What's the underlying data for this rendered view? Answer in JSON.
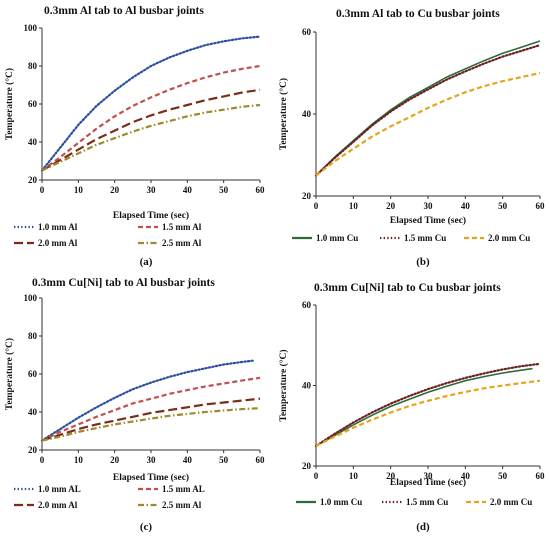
{
  "chart_data": [
    {
      "type": "line",
      "panel_label": "(a)",
      "title": "0.3mm Al tab to Al busbar joints",
      "xlabel": "Elapsed Time (sec)",
      "ylabel": "Temperature (°C)",
      "xlim": [
        0,
        60
      ],
      "ylim": [
        20,
        100
      ],
      "xticks": [
        "0",
        "10",
        "20",
        "30",
        "40",
        "50",
        "60"
      ],
      "yticks": [
        "20",
        "40",
        "60",
        "80",
        "100"
      ],
      "grid": false,
      "legend_position": "bottom",
      "series": [
        {
          "name": "1.0 mm Al",
          "color": "#2b4fa0",
          "dash": "dotted",
          "x": [
            0,
            5,
            10,
            15,
            20,
            25,
            30,
            35,
            40,
            45,
            50,
            55,
            60
          ],
          "y": [
            25,
            37,
            49,
            59,
            67,
            74,
            80,
            84.5,
            88,
            91,
            93,
            94.5,
            95.5
          ]
        },
        {
          "name": "1.5 mm Al",
          "color": "#c0504d",
          "dash": "dashed",
          "x": [
            0,
            5,
            10,
            15,
            20,
            25,
            30,
            35,
            40,
            45,
            50,
            55,
            60
          ],
          "y": [
            25,
            32,
            39.5,
            47,
            53.5,
            59,
            63.5,
            67.5,
            71,
            74,
            76.5,
            78.5,
            80
          ]
        },
        {
          "name": "2.0 mm Al",
          "color": "#7b2c16",
          "dash": "longdash",
          "x": [
            0,
            5,
            10,
            15,
            20,
            25,
            30,
            35,
            40,
            45,
            50,
            55,
            60
          ],
          "y": [
            25,
            30.5,
            36,
            41.5,
            46,
            50.5,
            54,
            57,
            59.5,
            62,
            64,
            66,
            67.5
          ]
        },
        {
          "name": "2.5 mm Al",
          "color": "#9c8a2e",
          "dash": "dashdot",
          "x": [
            0,
            5,
            10,
            15,
            20,
            25,
            30,
            35,
            40,
            45,
            50,
            55,
            60
          ],
          "y": [
            25,
            29.5,
            34,
            38.5,
            42,
            45.5,
            48.5,
            51,
            53.5,
            55.5,
            57,
            58.5,
            59.5
          ]
        }
      ]
    },
    {
      "type": "line",
      "panel_label": "(b)",
      "title": "0.3mm Al tab to Cu busbar joints",
      "xlabel": "Elapsed Time (sec)",
      "ylabel": "Temperature (°C)",
      "xlim": [
        0,
        60
      ],
      "ylim": [
        20,
        60
      ],
      "xticks": [
        "0",
        "10",
        "20",
        "30",
        "40",
        "50",
        "60"
      ],
      "yticks": [
        "20",
        "40",
        "60"
      ],
      "grid": false,
      "legend_position": "bottom",
      "series": [
        {
          "name": "1.0 mm Cu",
          "color": "#2e6b3a",
          "dash": "solid",
          "x": [
            0,
            5,
            10,
            15,
            20,
            25,
            30,
            35,
            40,
            45,
            50,
            55,
            60
          ],
          "y": [
            25,
            29.5,
            33.5,
            37.5,
            41,
            44,
            46.5,
            49,
            51,
            53,
            54.8,
            56.3,
            57.8
          ]
        },
        {
          "name": "1.5 mm Cu",
          "color": "#6b2222",
          "dash": "dotted",
          "x": [
            0,
            5,
            10,
            15,
            20,
            25,
            30,
            35,
            40,
            45,
            50,
            55,
            60
          ],
          "y": [
            25,
            29.3,
            33.2,
            37.2,
            40.6,
            43.5,
            46,
            48.4,
            50.4,
            52.3,
            54,
            55.4,
            56.8
          ]
        },
        {
          "name": "2.0 mm Cu",
          "color": "#e3a51c",
          "dash": "dashed",
          "x": [
            0,
            5,
            10,
            15,
            20,
            25,
            30,
            35,
            40,
            45,
            50,
            55,
            60
          ],
          "y": [
            25,
            28.5,
            31.5,
            34.5,
            37,
            39.2,
            41.5,
            43.5,
            45.3,
            46.8,
            48,
            49,
            50
          ]
        }
      ]
    },
    {
      "type": "line",
      "panel_label": "(c)",
      "title": "0.3mm Cu[Ni] tab to Al busbar joints",
      "xlabel": "Elapsed Time (sec)",
      "ylabel": "Temperature (°C)",
      "xlim": [
        0,
        60
      ],
      "ylim": [
        20,
        100
      ],
      "xticks": [
        "0",
        "10",
        "20",
        "30",
        "40",
        "50",
        "60"
      ],
      "yticks": [
        "20",
        "40",
        "60",
        "80",
        "100"
      ],
      "grid": false,
      "legend_position": "bottom",
      "series": [
        {
          "name": "1.0 mm AL",
          "color": "#2b4fa0",
          "dash": "dotted",
          "x": [
            0,
            5,
            10,
            15,
            20,
            25,
            30,
            35,
            40,
            45,
            50,
            55,
            58
          ],
          "y": [
            25,
            31,
            37,
            42.5,
            47.5,
            52,
            55.5,
            58.5,
            61,
            63,
            65,
            66.3,
            67
          ]
        },
        {
          "name": "1.5 mm AL",
          "color": "#c0504d",
          "dash": "dashed",
          "x": [
            0,
            5,
            10,
            15,
            20,
            25,
            30,
            35,
            40,
            45,
            50,
            55,
            60
          ],
          "y": [
            25,
            29.5,
            33.5,
            37.5,
            41,
            44.5,
            47,
            49.5,
            51.5,
            53.5,
            55,
            56.5,
            58
          ]
        },
        {
          "name": "2.0 mm Al",
          "color": "#7b2c16",
          "dash": "longdash",
          "x": [
            0,
            5,
            10,
            15,
            20,
            25,
            30,
            35,
            40,
            45,
            50,
            55,
            60
          ],
          "y": [
            25,
            28,
            31,
            33.5,
            35.5,
            37.5,
            39.5,
            41,
            42.5,
            44,
            45,
            46,
            47
          ]
        },
        {
          "name": "2.5 mm Al",
          "color": "#9c8a2e",
          "dash": "dashdot",
          "x": [
            0,
            5,
            10,
            15,
            20,
            25,
            30,
            35,
            40,
            45,
            50,
            55,
            60
          ],
          "y": [
            25,
            27,
            29.5,
            31.5,
            33.5,
            35,
            36.5,
            38,
            39,
            40,
            40.8,
            41.5,
            42
          ]
        }
      ]
    },
    {
      "type": "line",
      "panel_label": "(d)",
      "title": "0.3mm Cu[Ni] tab to Cu busbar joints",
      "xlabel": "Elapsed Time (sec)",
      "ylabel": "Temperature (°C)",
      "xlim": [
        0,
        60
      ],
      "ylim": [
        20,
        60
      ],
      "xticks": [
        "0",
        "10",
        "20",
        "30",
        "40",
        "50",
        "60"
      ],
      "yticks": [
        "20",
        "40",
        "60"
      ],
      "grid": false,
      "legend_position": "bottom",
      "series": [
        {
          "name": "1.0 mm Cu",
          "color": "#2e6b3a",
          "dash": "solid",
          "x": [
            0,
            5,
            10,
            15,
            20,
            25,
            30,
            35,
            40,
            45,
            50,
            55,
            58
          ],
          "y": [
            25,
            27.6,
            30.2,
            32.6,
            34.8,
            36.6,
            38.3,
            39.8,
            41.2,
            42.2,
            43.1,
            43.8,
            44.2
          ]
        },
        {
          "name": "1.5 mm Cu",
          "color": "#6b2222",
          "dash": "dotted",
          "x": [
            0,
            5,
            10,
            15,
            20,
            25,
            30,
            35,
            40,
            45,
            50,
            55,
            60
          ],
          "y": [
            25,
            28,
            30.8,
            33.3,
            35.5,
            37.4,
            39.1,
            40.6,
            41.9,
            43,
            44,
            44.8,
            45.4
          ]
        },
        {
          "name": "2.0 mm Cu",
          "color": "#e3a51c",
          "dash": "dashed",
          "x": [
            0,
            5,
            10,
            15,
            20,
            25,
            30,
            35,
            40,
            45,
            50,
            55,
            60
          ],
          "y": [
            25,
            27.3,
            29.5,
            31.5,
            33.3,
            34.9,
            36.2,
            37.4,
            38.4,
            39.3,
            40,
            40.6,
            41.2
          ]
        }
      ]
    }
  ]
}
